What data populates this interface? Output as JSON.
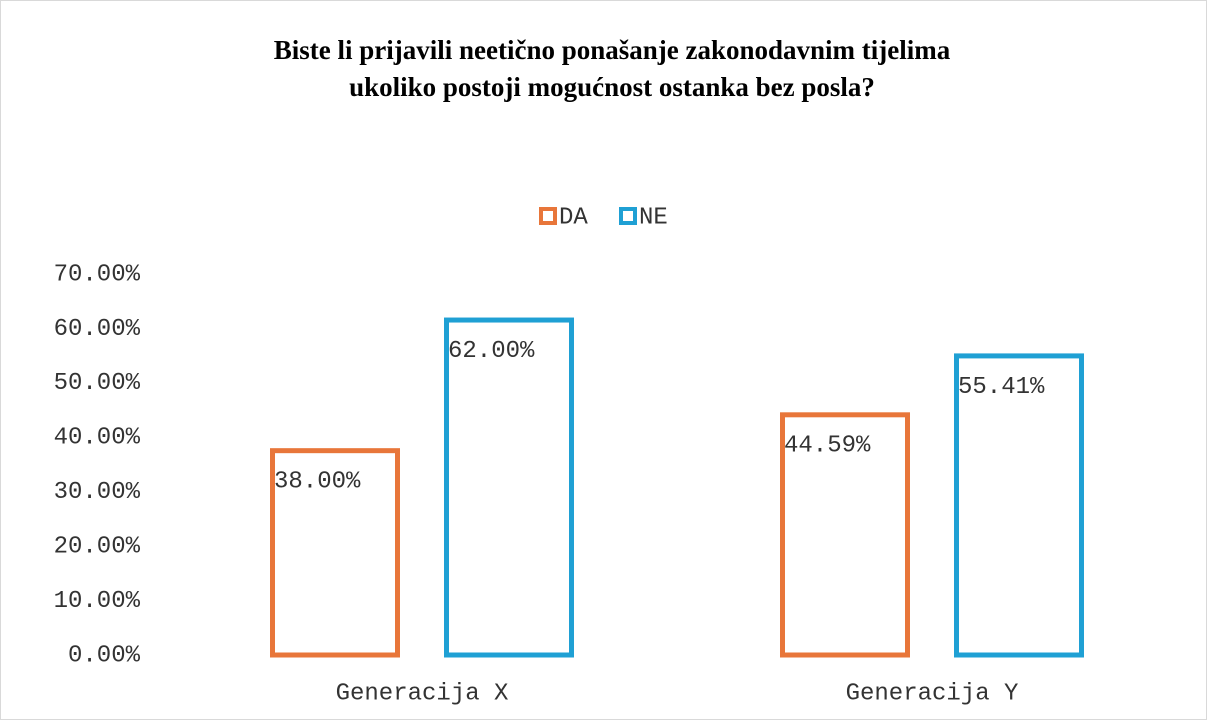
{
  "chart_data": {
    "type": "bar",
    "title": [
      "Biste li prijavili neetično ponašanje zakonodavnim tijelima",
      "ukoliko postoji mogućnost ostanka bez posla?"
    ],
    "categories": [
      "Generacija X",
      "Generacija Y"
    ],
    "series": [
      {
        "name": "DA",
        "color": "#e8763a",
        "values": [
          38,
          44.59
        ],
        "value_labels": [
          "38.00%",
          "44.59%"
        ]
      },
      {
        "name": "NE",
        "color": "#1fa0d4",
        "values": [
          62,
          55.41
        ],
        "value_labels": [
          "62.00%",
          "55.41%"
        ]
      }
    ],
    "ylim": [
      0,
      70
    ],
    "yticks": [
      {
        "value": 0,
        "label": "0.00%"
      },
      {
        "value": 10,
        "label": "10.00%"
      },
      {
        "value": 20,
        "label": "20.00%"
      },
      {
        "value": 30,
        "label": "30.00%"
      },
      {
        "value": 40,
        "label": "40.00%"
      },
      {
        "value": 50,
        "label": "50.00%"
      },
      {
        "value": 60,
        "label": "60.00%"
      },
      {
        "value": 70,
        "label": "70.00%"
      }
    ],
    "grid": false,
    "legend": "top"
  }
}
